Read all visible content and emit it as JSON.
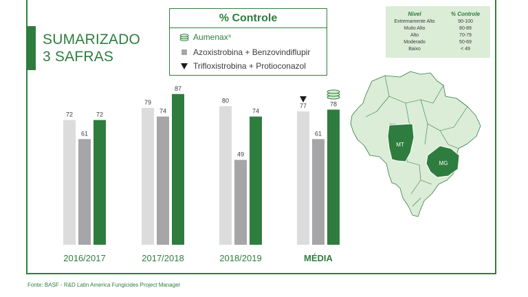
{
  "title": {
    "line1": "SUMARIZADO",
    "line2": "3 SAFRAS"
  },
  "legend": {
    "title": "% Controle",
    "items": [
      {
        "label": "Aumenax",
        "mark": "®",
        "icon": "stacked-discs-icon"
      },
      {
        "label": "Azoxistrobina + Benzovindiflupir",
        "icon": "gray-square-icon"
      },
      {
        "label": "Trifloxistrobina + Protioconazol",
        "icon": "black-triangle-icon"
      }
    ]
  },
  "level_table": {
    "headers": [
      "Nível",
      "% Controle"
    ],
    "rows": [
      [
        "Extremamente Alto",
        "90-100"
      ],
      [
        "Muito Alto",
        "80-89"
      ],
      [
        "Alto",
        "70-79"
      ],
      [
        "Moderado",
        "50-69"
      ],
      [
        "Baixo",
        "< 49"
      ]
    ]
  },
  "map": {
    "states": [
      "MT",
      "MG"
    ]
  },
  "colors": {
    "green": "#2e7d3e",
    "light_gray": "#dcdcdc",
    "mid_gray": "#a6a6a8",
    "light_green": "#dbecd7"
  },
  "chart_data": {
    "type": "bar",
    "categories": [
      "2016/2017",
      "2017/2018",
      "2018/2019",
      "MÉDIA"
    ],
    "series": [
      {
        "name": "Trifloxistrobina + Protioconazol",
        "values": [
          72,
          79,
          80,
          77
        ]
      },
      {
        "name": "Azoxistrobina + Benzovindiflupir",
        "values": [
          61,
          74,
          49,
          61
        ]
      },
      {
        "name": "Aumenax",
        "values": [
          72,
          87,
          74,
          78
        ]
      }
    ],
    "ylim": [
      0,
      100
    ],
    "grid": false,
    "legend_position": "top-center"
  },
  "source": "Fonte: BASF - R&D Latin America Fungicides Project Manager"
}
